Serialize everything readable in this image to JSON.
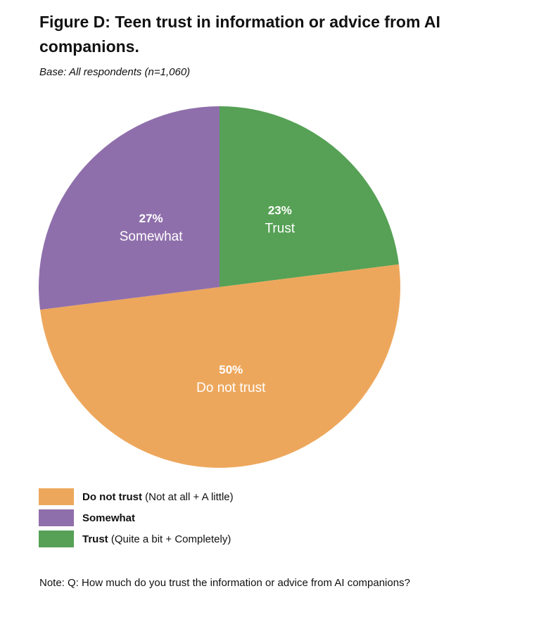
{
  "chart_data": {
    "type": "pie",
    "title": "Figure D: Teen trust in information or advice from AI companions.",
    "subtitle": "Base: All respondents (n=1,060)",
    "slices": [
      {
        "key": "trust",
        "percent": 23,
        "percent_label": "23%",
        "label": "Trust",
        "legend_bold": "Trust",
        "legend_rest": " (Quite a bit + Completely)",
        "color": "#56a155"
      },
      {
        "key": "do-not-trust",
        "percent": 50,
        "percent_label": "50%",
        "label": "Do not trust",
        "legend_bold": "Do not trust",
        "legend_rest": " (Not at all + A little)",
        "color": "#eda75c"
      },
      {
        "key": "somewhat",
        "percent": 27,
        "percent_label": "27%",
        "label": "Somewhat",
        "legend_bold": "Somewhat",
        "legend_rest": "",
        "color": "#8f6fab"
      }
    ],
    "legend_order": [
      "do-not-trust",
      "somewhat",
      "trust"
    ],
    "note": "Note: Q: How much do you trust the information or advice from AI companions?"
  }
}
